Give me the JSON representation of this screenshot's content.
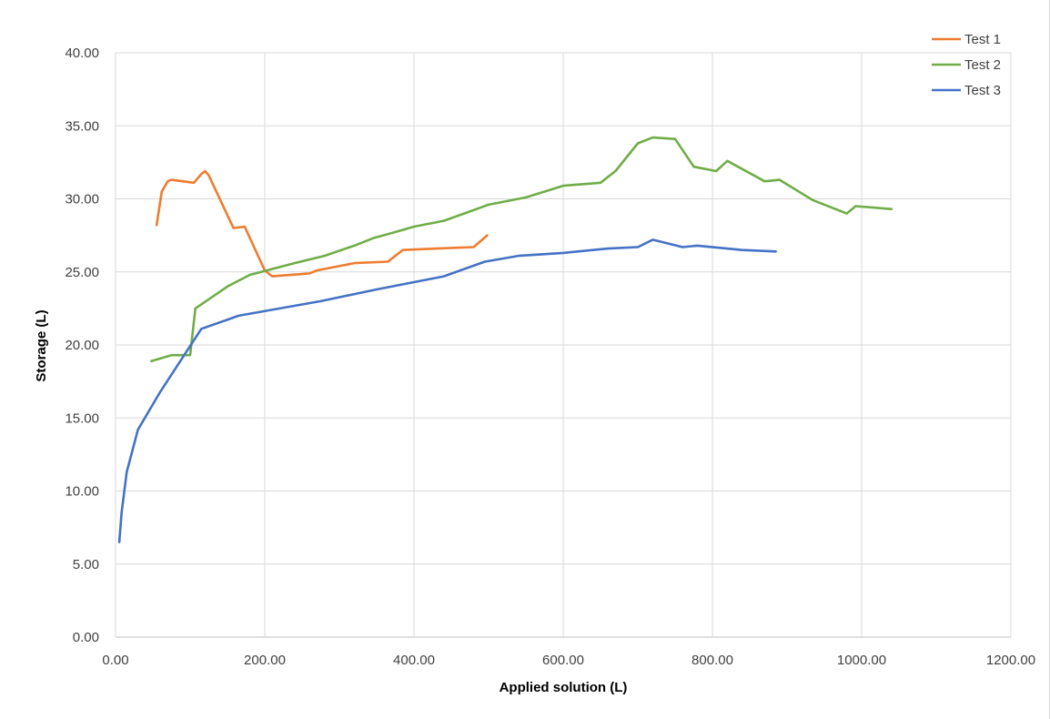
{
  "chart_data": {
    "type": "line",
    "xlabel": "Applied solution (L)",
    "ylabel": "Storage (L)",
    "xlim": [
      0,
      1200
    ],
    "ylim": [
      0,
      40
    ],
    "x_ticks": [
      0,
      200,
      400,
      600,
      800,
      1000,
      1200
    ],
    "y_ticks": [
      0,
      5,
      10,
      15,
      20,
      25,
      30,
      35,
      40
    ],
    "x_tick_labels": [
      "0.00",
      "200.00",
      "400.00",
      "600.00",
      "800.00",
      "1000.00",
      "1200.00"
    ],
    "y_tick_labels": [
      "0.00",
      "5.00",
      "10.00",
      "15.00",
      "20.00",
      "25.00",
      "30.00",
      "35.00",
      "40.00"
    ],
    "grid": true,
    "legend_position": "top-right",
    "series": [
      {
        "name": "Test 1",
        "color": "#ED7D31",
        "x": [
          55,
          62,
          70,
          75,
          105,
          115,
          120,
          125,
          158,
          173,
          200,
          210,
          260,
          270,
          320,
          365,
          385,
          430,
          480,
          498
        ],
        "y": [
          28.2,
          30.5,
          31.2,
          31.3,
          31.1,
          31.7,
          31.9,
          31.6,
          28.0,
          28.1,
          25.1,
          24.7,
          24.9,
          25.1,
          25.6,
          25.7,
          26.5,
          26.6,
          26.7,
          27.5
        ]
      },
      {
        "name": "Test 2",
        "color": "#70AD47",
        "x": [
          48,
          75,
          100,
          107,
          150,
          180,
          240,
          280,
          320,
          345,
          380,
          400,
          440,
          500,
          550,
          600,
          650,
          670,
          700,
          720,
          750,
          775,
          805,
          820,
          870,
          890,
          935,
          980,
          992,
          1040
        ],
        "y": [
          18.9,
          19.3,
          19.3,
          22.5,
          24.0,
          24.8,
          25.6,
          26.1,
          26.8,
          27.3,
          27.8,
          28.1,
          28.5,
          29.6,
          30.1,
          30.9,
          31.1,
          31.9,
          33.8,
          34.2,
          34.1,
          32.2,
          31.9,
          32.6,
          31.2,
          31.3,
          29.9,
          29.0,
          29.5,
          29.3
        ]
      },
      {
        "name": "Test 3",
        "color": "#4472C4",
        "x": [
          5,
          8,
          15,
          30,
          60,
          115,
          165,
          220,
          275,
          350,
          440,
          495,
          540,
          600,
          660,
          700,
          720,
          760,
          780,
          840,
          885
        ],
        "y": [
          6.5,
          8.5,
          11.3,
          14.2,
          16.8,
          21.1,
          22.0,
          22.5,
          23.0,
          23.8,
          24.7,
          25.7,
          26.1,
          26.3,
          26.6,
          26.7,
          27.2,
          26.7,
          26.8,
          26.5,
          26.4
        ]
      }
    ]
  }
}
